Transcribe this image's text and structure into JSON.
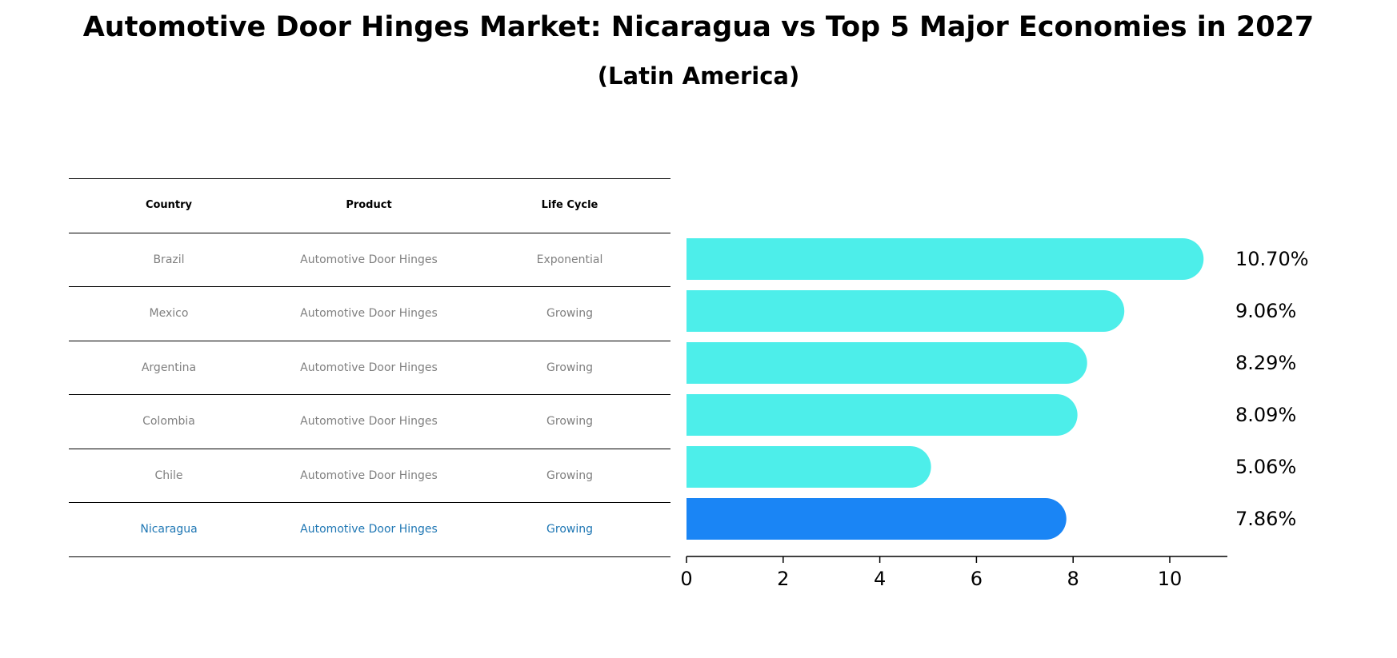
{
  "title": "Automotive Door Hinges Market: Nicaragua vs Top 5 Major Economies in 2027",
  "subtitle": "(Latin America)",
  "table": {
    "headers": [
      "Country",
      "Product",
      "Life Cycle"
    ],
    "rows": [
      [
        "Brazil",
        "Automotive Door Hinges",
        "Exponential"
      ],
      [
        "Mexico",
        "Automotive Door Hinges",
        "Growing"
      ],
      [
        "Argentina",
        "Automotive Door Hinges",
        "Growing"
      ],
      [
        "Colombia",
        "Automotive Door Hinges",
        "Growing"
      ],
      [
        "Chile",
        "Automotive Door Hinges",
        "Growing"
      ],
      [
        "Nicaragua",
        "Automotive Door Hinges",
        "Growing"
      ]
    ]
  },
  "chart_data": {
    "type": "bar",
    "orientation": "horizontal",
    "categories": [
      "Brazil",
      "Mexico",
      "Argentina",
      "Colombia",
      "Chile",
      "Nicaragua"
    ],
    "values": [
      10.7,
      9.06,
      8.29,
      8.09,
      5.06,
      7.86
    ],
    "value_labels": [
      "10.70%",
      "9.06%",
      "8.29%",
      "8.09%",
      "5.06%",
      "7.86%"
    ],
    "highlight_category": "Nicaragua",
    "xlim": [
      0,
      11.2
    ],
    "xticks": [
      0,
      2,
      4,
      6,
      8,
      10
    ],
    "xlabel": "",
    "ylabel": "",
    "colors": {
      "bar": "#4deeea",
      "highlight": "#1a85f5",
      "highlight_text": "#1f77b4",
      "muted_text": "#808080"
    }
  }
}
